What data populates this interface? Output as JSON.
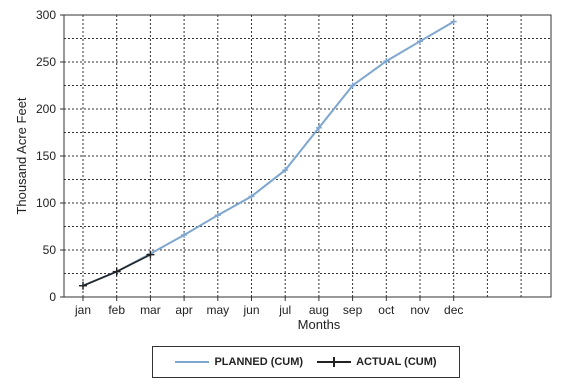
{
  "chart_data": {
    "type": "line",
    "title": "",
    "xlabel": "Months",
    "ylabel": "Thousand Acre Feet",
    "categories": [
      "jan",
      "feb",
      "mar",
      "apr",
      "may",
      "jun",
      "jul",
      "aug",
      "sep",
      "oct",
      "nov",
      "dec"
    ],
    "ylim": [
      0,
      300
    ],
    "yticks": [
      "0",
      "50",
      "100",
      "150",
      "200",
      "250",
      "300"
    ],
    "grid": true,
    "legend_position": "bottom",
    "series": [
      {
        "name": "PLANNED (CUM)",
        "color": "#7ea6cf",
        "values": [
          12,
          27,
          46,
          66,
          87,
          107,
          135,
          180,
          225,
          251,
          272,
          293
        ]
      },
      {
        "name": "ACTUAL (CUM)",
        "color": "#222222",
        "values": [
          12,
          27,
          45,
          null,
          null,
          null,
          null,
          null,
          null,
          null,
          null,
          null
        ]
      }
    ]
  }
}
